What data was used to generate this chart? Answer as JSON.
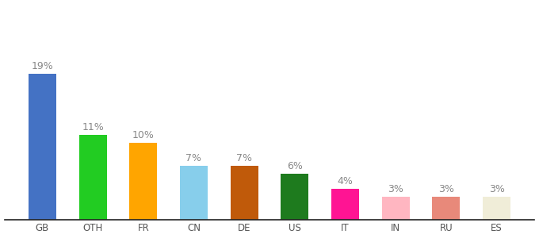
{
  "categories": [
    "GB",
    "OTH",
    "FR",
    "CN",
    "DE",
    "US",
    "IT",
    "IN",
    "RU",
    "ES"
  ],
  "values": [
    19,
    11,
    10,
    7,
    7,
    6,
    4,
    3,
    3,
    3
  ],
  "labels": [
    "19%",
    "11%",
    "10%",
    "7%",
    "7%",
    "6%",
    "4%",
    "3%",
    "3%",
    "3%"
  ],
  "bar_colors": [
    "#4472C4",
    "#22CC22",
    "#FFA500",
    "#87CEEB",
    "#C05A0A",
    "#1E7B1E",
    "#FF1493",
    "#FFB6C1",
    "#E8897A",
    "#F0EDD8"
  ],
  "ylim": [
    0,
    28
  ],
  "bar_width": 0.55,
  "label_fontsize": 9,
  "tick_fontsize": 8.5,
  "label_color": "#888888",
  "tick_color": "#555555",
  "background_color": "#ffffff",
  "spine_color": "#222222"
}
